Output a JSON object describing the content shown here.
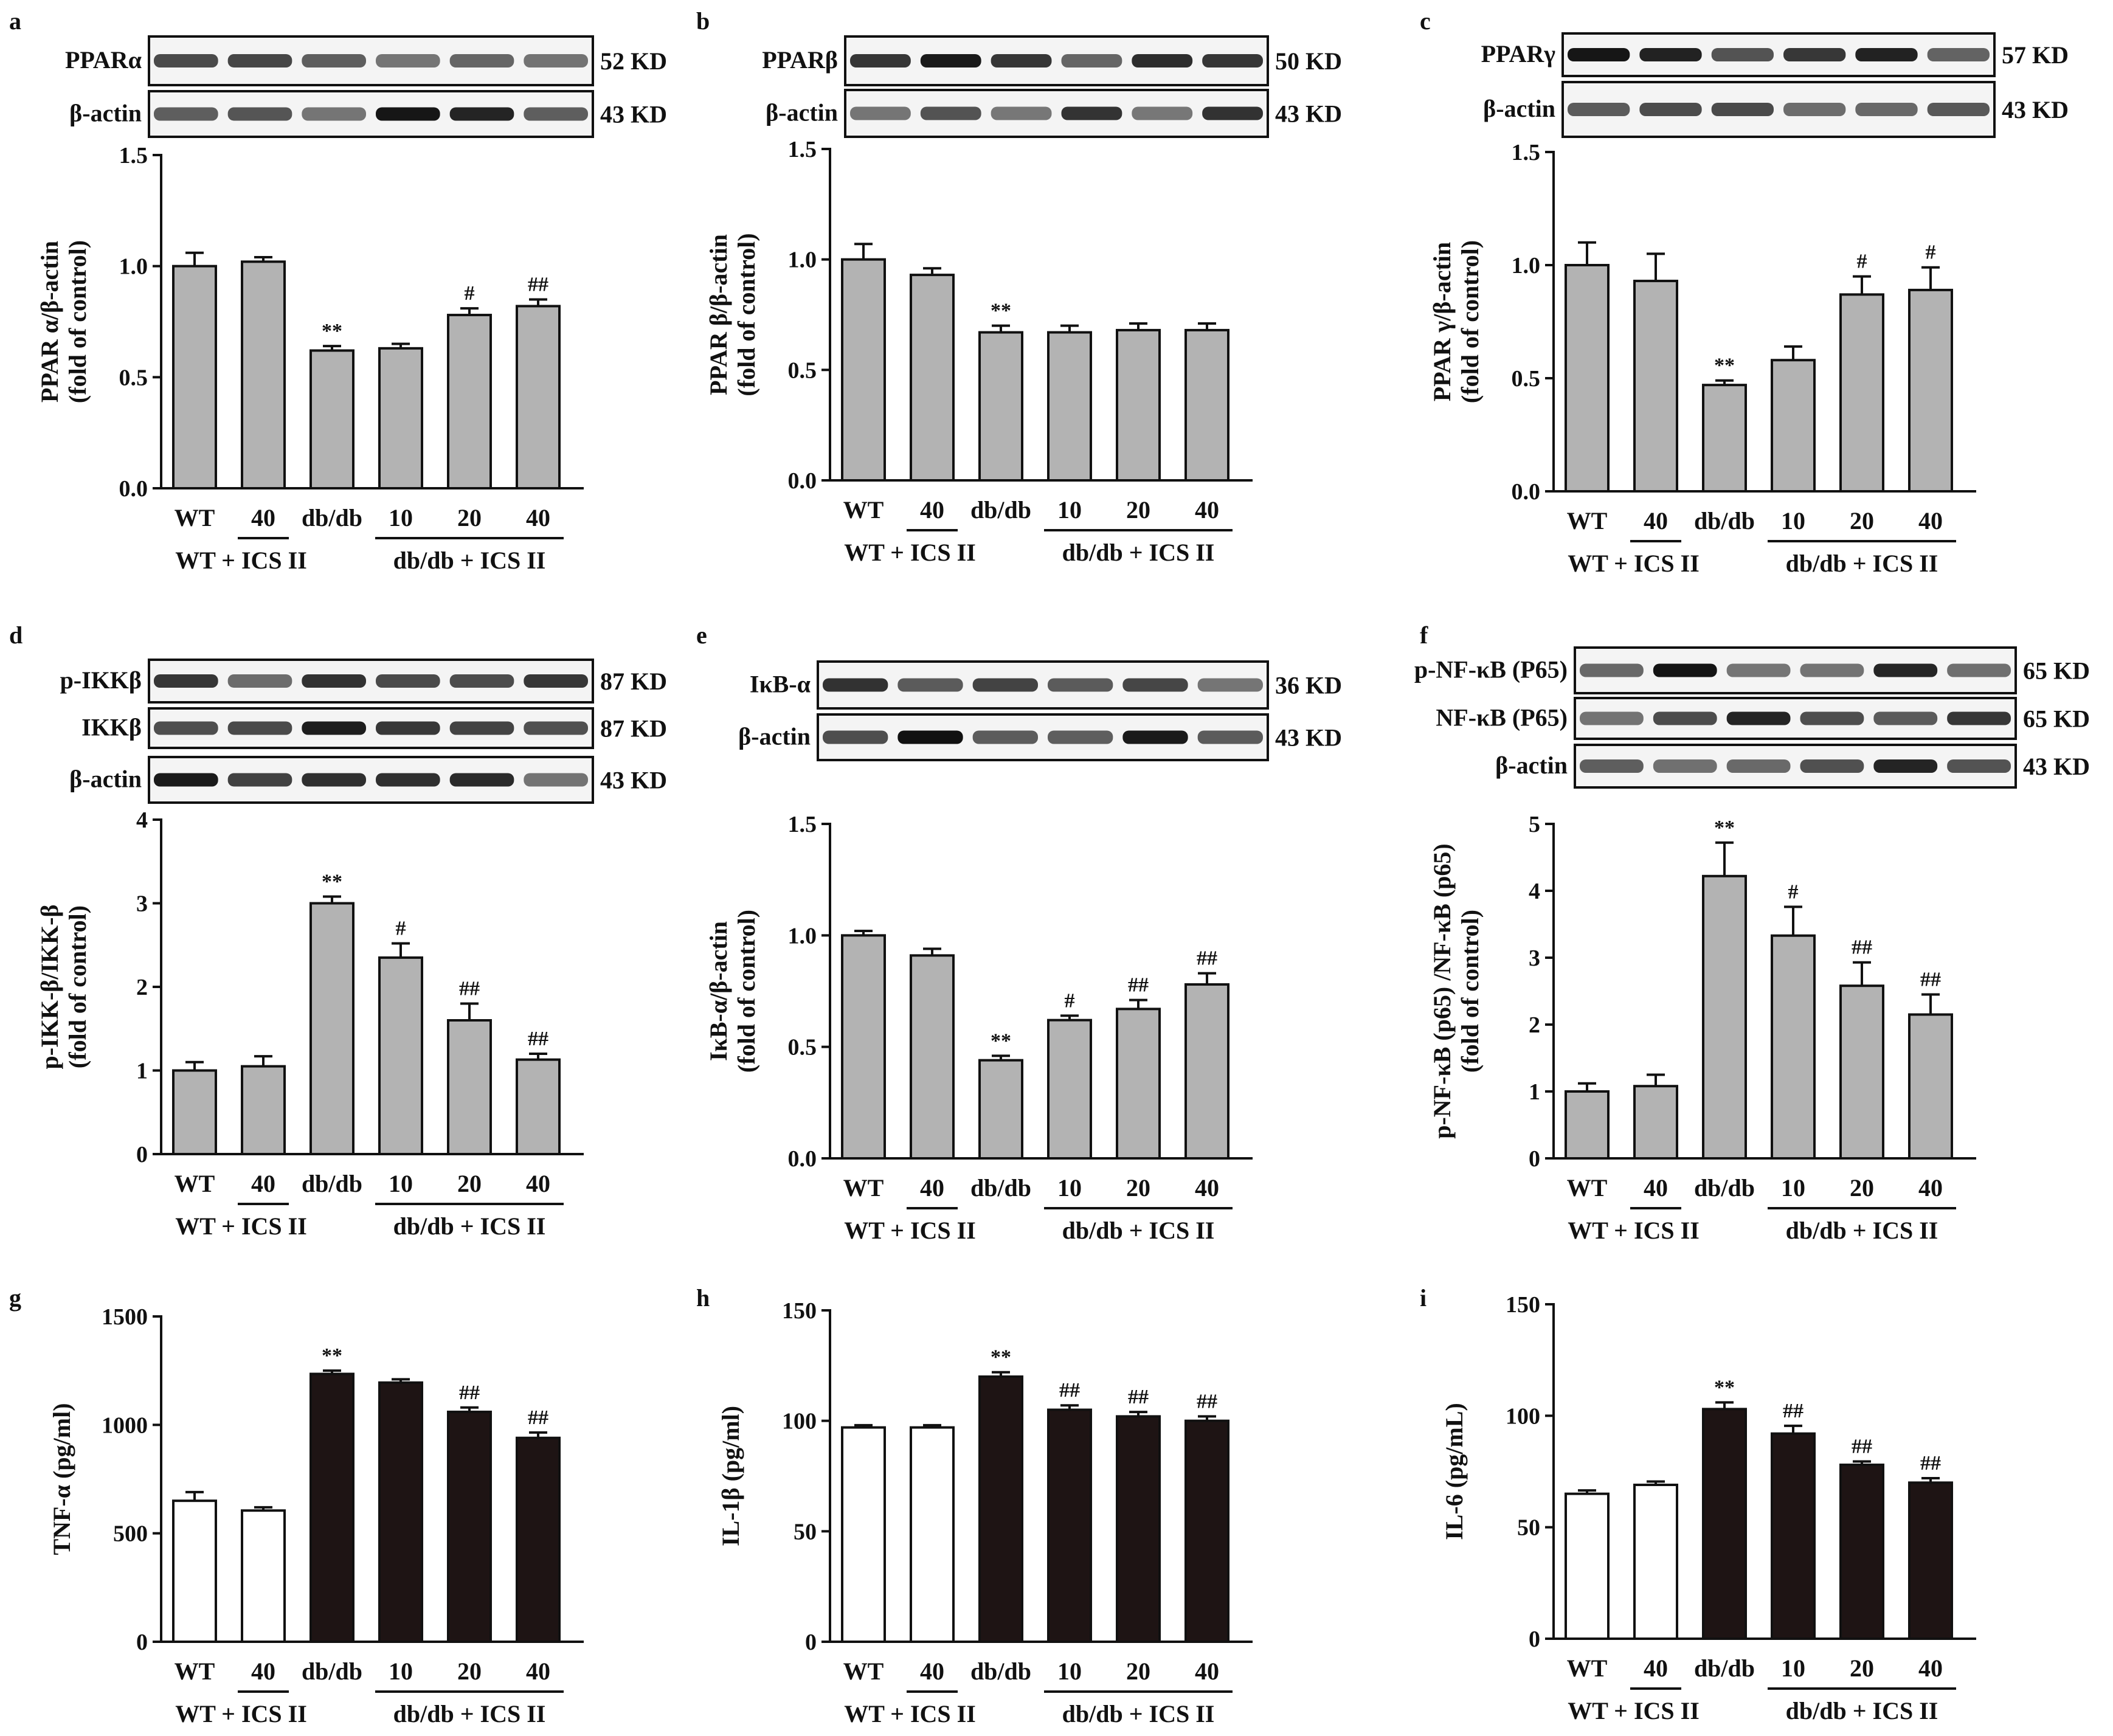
{
  "chart_data": [
    {
      "panel": "a",
      "type": "bar",
      "bar_style": "gray",
      "blots": [
        {
          "label": "PPARα",
          "kd": "52 KD"
        },
        {
          "label": "β-actin",
          "kd": "43 KD"
        }
      ],
      "ylabel": [
        "PPAR α/β-actin",
        "(fold of control)"
      ],
      "yticks": [
        "0.0",
        "0.5",
        "1.0",
        "1.5"
      ],
      "ylim": [
        0,
        1.5
      ],
      "categories": [
        "WT",
        "40",
        "db/db",
        "10",
        "20",
        "40"
      ],
      "groups": [
        "WT + ICS II",
        "db/db + ICS II"
      ],
      "values": [
        1.0,
        1.02,
        0.62,
        0.63,
        0.78,
        0.82
      ],
      "errors": [
        0.06,
        0.02,
        0.02,
        0.02,
        0.03,
        0.03
      ],
      "marks": [
        "",
        "",
        "**",
        "",
        "#",
        "##"
      ]
    },
    {
      "panel": "b",
      "type": "bar",
      "bar_style": "gray",
      "blots": [
        {
          "label": "PPARβ",
          "kd": "50 KD"
        },
        {
          "label": "β-actin",
          "kd": "43 KD"
        }
      ],
      "ylabel": [
        "PPAR β/β-actin",
        "(fold of control)"
      ],
      "yticks": [
        "0.0",
        "0.5",
        "1.0",
        "1.5"
      ],
      "ylim": [
        0,
        1.5
      ],
      "categories": [
        "WT",
        "40",
        "db/db",
        "10",
        "20",
        "40"
      ],
      "groups": [
        "WT + ICS II",
        "db/db + ICS II"
      ],
      "values": [
        1.0,
        0.93,
        0.67,
        0.67,
        0.68,
        0.68
      ],
      "errors": [
        0.07,
        0.03,
        0.03,
        0.03,
        0.03,
        0.03
      ],
      "marks": [
        "",
        "",
        "**",
        "",
        "",
        ""
      ]
    },
    {
      "panel": "c",
      "type": "bar",
      "bar_style": "gray",
      "blots": [
        {
          "label": "PPARγ",
          "kd": "57 KD"
        },
        {
          "label": "β-actin",
          "kd": "43 KD"
        }
      ],
      "ylabel": [
        "PPAR γ/β-actin",
        "(fold of control)"
      ],
      "yticks": [
        "0.0",
        "0.5",
        "1.0",
        "1.5"
      ],
      "ylim": [
        0,
        1.5
      ],
      "categories": [
        "WT",
        "40",
        "db/db",
        "10",
        "20",
        "40"
      ],
      "groups": [
        "WT + ICS II",
        "db/db + ICS II"
      ],
      "values": [
        1.0,
        0.93,
        0.47,
        0.58,
        0.87,
        0.89
      ],
      "errors": [
        0.1,
        0.12,
        0.02,
        0.06,
        0.08,
        0.1
      ],
      "marks": [
        "",
        "",
        "**",
        "",
        "#",
        "#"
      ]
    },
    {
      "panel": "d",
      "type": "bar",
      "bar_style": "gray",
      "blots": [
        {
          "label": "p-IKKβ",
          "kd": "87 KD"
        },
        {
          "label": "IKKβ",
          "kd": "87 KD"
        },
        {
          "label": "β-actin",
          "kd": "43 KD"
        }
      ],
      "ylabel": [
        "p-IKK-β/IKK-β",
        "(fold of control)"
      ],
      "yticks": [
        "0",
        "1",
        "2",
        "3",
        "4"
      ],
      "ylim": [
        0,
        4
      ],
      "categories": [
        "WT",
        "40",
        "db/db",
        "10",
        "20",
        "40"
      ],
      "groups": [
        "WT + ICS II",
        "db/db + ICS II"
      ],
      "values": [
        1.0,
        1.05,
        3.0,
        2.35,
        1.6,
        1.13
      ],
      "errors": [
        0.1,
        0.12,
        0.08,
        0.17,
        0.2,
        0.07
      ],
      "marks": [
        "",
        "",
        "**",
        "#",
        "##",
        "##"
      ]
    },
    {
      "panel": "e",
      "type": "bar",
      "bar_style": "gray",
      "blots": [
        {
          "label": "IκB-α",
          "kd": "36 KD"
        },
        {
          "label": "β-actin",
          "kd": "43 KD"
        }
      ],
      "ylabel": [
        "IκB-α/β-actin",
        "(fold of control)"
      ],
      "yticks": [
        "0.0",
        "0.5",
        "1.0",
        "1.5"
      ],
      "ylim": [
        0,
        1.5
      ],
      "categories": [
        "WT",
        "40",
        "db/db",
        "10",
        "20",
        "40"
      ],
      "groups": [
        "WT + ICS II",
        "db/db + ICS II"
      ],
      "values": [
        1.0,
        0.91,
        0.44,
        0.62,
        0.67,
        0.78
      ],
      "errors": [
        0.02,
        0.03,
        0.02,
        0.02,
        0.04,
        0.05
      ],
      "marks": [
        "",
        "",
        "**",
        "#",
        "##",
        "##"
      ]
    },
    {
      "panel": "f",
      "type": "bar",
      "bar_style": "gray",
      "blots": [
        {
          "label": "p-NF-κB (P65)",
          "kd": "65 KD"
        },
        {
          "label": "NF-κB (P65)",
          "kd": "65 KD"
        },
        {
          "label": "β-actin",
          "kd": "43 KD"
        }
      ],
      "ylabel": [
        "p-NF-κB (p65) /NF-κB (p65)",
        "(fold of control)"
      ],
      "yticks": [
        "0",
        "1",
        "2",
        "3",
        "4",
        "5"
      ],
      "ylim": [
        0,
        5
      ],
      "categories": [
        "WT",
        "40",
        "db/db",
        "10",
        "20",
        "40"
      ],
      "groups": [
        "WT + ICS II",
        "db/db + ICS II"
      ],
      "values": [
        1.0,
        1.08,
        4.22,
        3.33,
        2.58,
        2.15
      ],
      "errors": [
        0.12,
        0.17,
        0.5,
        0.43,
        0.35,
        0.3
      ],
      "marks": [
        "",
        "",
        "**",
        "#",
        "##",
        "##"
      ]
    },
    {
      "panel": "g",
      "type": "bar",
      "bar_style": "bw",
      "blots": [],
      "ylabel": [
        "TNF-α (pg/ml)"
      ],
      "yticks": [
        "0",
        "500",
        "1000",
        "1500"
      ],
      "ylim": [
        0,
        1500
      ],
      "categories": [
        "WT",
        "40",
        "db/db",
        "10",
        "20",
        "40"
      ],
      "groups": [
        "WT + ICS II",
        "db/db + ICS II"
      ],
      "values": [
        650,
        605,
        1235,
        1195,
        1060,
        940
      ],
      "errors": [
        40,
        15,
        15,
        15,
        20,
        25
      ],
      "marks": [
        "",
        "",
        "**",
        "",
        "##",
        "##"
      ]
    },
    {
      "panel": "h",
      "type": "bar",
      "bar_style": "bw",
      "blots": [],
      "ylabel": [
        "IL-1β (pg/ml)"
      ],
      "yticks": [
        "0",
        "50",
        "100",
        "150"
      ],
      "ylim": [
        0,
        150
      ],
      "categories": [
        "WT",
        "40",
        "db/db",
        "10",
        "20",
        "40"
      ],
      "groups": [
        "WT + ICS II",
        "db/db + ICS II"
      ],
      "values": [
        97,
        97,
        120,
        105,
        102,
        100
      ],
      "errors": [
        1,
        1,
        2,
        2,
        2,
        2
      ],
      "marks": [
        "",
        "",
        "**",
        "##",
        "##",
        "##"
      ]
    },
    {
      "panel": "i",
      "type": "bar",
      "bar_style": "bw",
      "blots": [],
      "ylabel": [
        "IL-6 (pg/mL)"
      ],
      "yticks": [
        "0",
        "50",
        "100",
        "150"
      ],
      "ylim": [
        0,
        150
      ],
      "categories": [
        "WT",
        "40",
        "db/db",
        "10",
        "20",
        "40"
      ],
      "groups": [
        "WT + ICS II",
        "db/db + ICS II"
      ],
      "values": [
        65,
        69,
        103,
        92,
        78,
        70
      ],
      "errors": [
        1.5,
        1.5,
        3,
        3.5,
        1.5,
        2
      ],
      "marks": [
        "",
        "",
        "**",
        "##",
        "##",
        "##"
      ]
    }
  ]
}
